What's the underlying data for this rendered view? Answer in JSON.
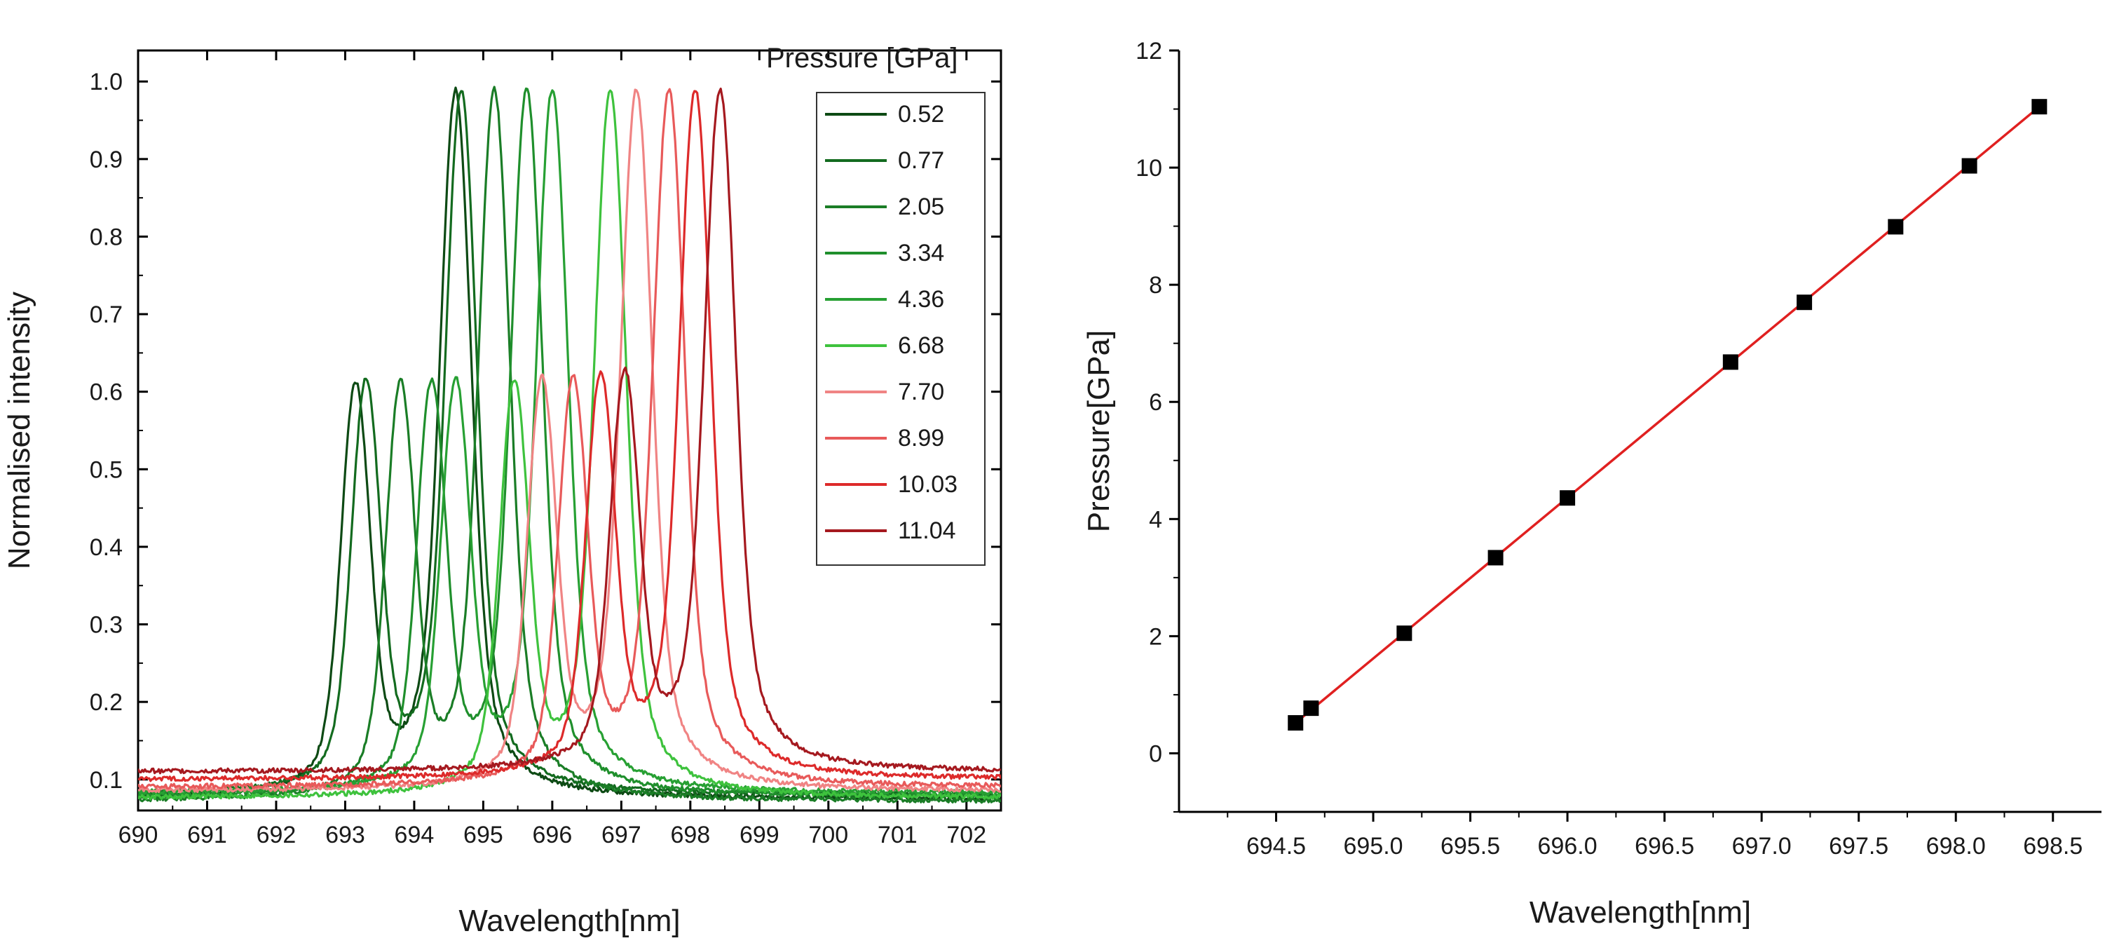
{
  "chart_data": [
    {
      "type": "line",
      "xlabel": "Wavelength[nm]",
      "ylabel": "Normalised intensity",
      "xlim": [
        690,
        702.5
      ],
      "ylim": [
        0.06,
        1.04
      ],
      "xticks": [
        690,
        691,
        692,
        693,
        694,
        695,
        696,
        697,
        698,
        699,
        700,
        701,
        702
      ],
      "yticks": [
        0.1,
        0.2,
        0.3,
        0.4,
        0.5,
        0.6,
        0.7,
        0.8,
        0.9,
        1.0
      ],
      "ytick_labels": [
        "0.1",
        "0.2",
        "0.3",
        "0.4",
        "0.5",
        "0.6",
        "0.7",
        "0.8",
        "0.9",
        "1.0"
      ],
      "legend_title": "Pressure [GPa]",
      "legend_position": "top-right",
      "series": [
        {
          "name": "0.52",
          "color": "#0d4a14",
          "r1": 694.6,
          "r2": 693.15,
          "base": 0.075
        },
        {
          "name": "0.77",
          "color": "#136b1f",
          "r1": 694.68,
          "r2": 693.3,
          "base": 0.08
        },
        {
          "name": "2.05",
          "color": "#1a7d26",
          "r1": 695.16,
          "r2": 693.8,
          "base": 0.072
        },
        {
          "name": "3.34",
          "color": "#1f8f2c",
          "r1": 695.63,
          "r2": 694.25,
          "base": 0.078
        },
        {
          "name": "4.36",
          "color": "#27a033",
          "r1": 696.0,
          "r2": 694.6,
          "base": 0.082
        },
        {
          "name": "6.68",
          "color": "#3ec23d",
          "r1": 696.84,
          "r2": 695.45,
          "base": 0.076
        },
        {
          "name": "7.70",
          "color": "#f08484",
          "r1": 697.22,
          "r2": 695.85,
          "base": 0.085
        },
        {
          "name": "8.99",
          "color": "#e85a5a",
          "r1": 697.69,
          "r2": 696.3,
          "base": 0.09
        },
        {
          "name": "10.03",
          "color": "#dd2a2a",
          "r1": 698.07,
          "r2": 696.7,
          "base": 0.1
        },
        {
          "name": "11.04",
          "color": "#a5191f",
          "r1": 698.43,
          "r2": 697.05,
          "base": 0.11
        }
      ]
    },
    {
      "type": "scatter",
      "xlabel": "Wavelength[nm]",
      "ylabel": "Pressure[GPa]",
      "xlim": [
        694.0,
        698.75
      ],
      "ylim": [
        -1,
        12
      ],
      "xticks": [
        694.5,
        695.0,
        695.5,
        696.0,
        696.5,
        697.0,
        697.5,
        698.0,
        698.5
      ],
      "xtick_labels": [
        "694.5",
        "695.0",
        "695.5",
        "696.0",
        "696.5",
        "697.0",
        "697.5",
        "698.0",
        "698.5"
      ],
      "yticks": [
        0,
        2,
        4,
        6,
        8,
        10,
        12
      ],
      "ytick_labels": [
        "0",
        "2",
        "4",
        "6",
        "8",
        "10",
        "12"
      ],
      "x": [
        694.6,
        694.68,
        695.16,
        695.63,
        696.0,
        696.84,
        697.22,
        697.69,
        698.07,
        698.43
      ],
      "y": [
        0.52,
        0.77,
        2.05,
        3.34,
        4.36,
        6.68,
        7.7,
        8.99,
        10.03,
        11.04
      ],
      "fit_line": {
        "x": [
          694.6,
          698.43
        ],
        "y": [
          0.52,
          11.04
        ],
        "color": "#e02020"
      },
      "marker_color": "#000000"
    }
  ]
}
